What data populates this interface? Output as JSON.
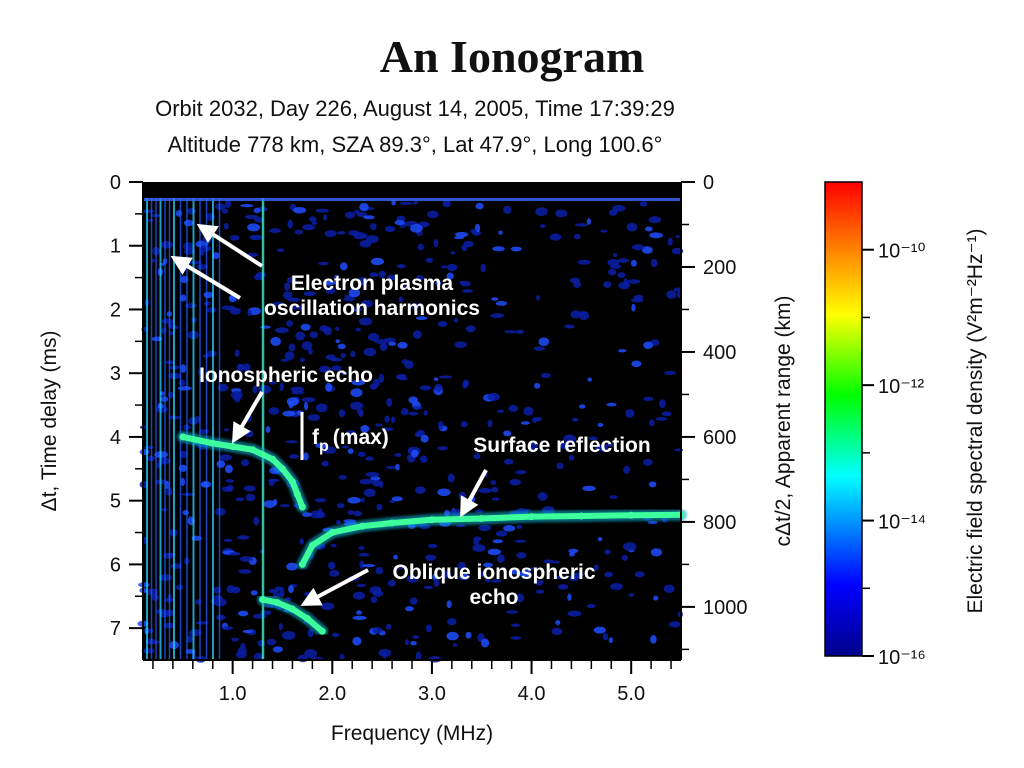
{
  "title": "An Ionogram",
  "header_line1": "Orbit 2032,   Day 226,  August 14, 2005,   Time  17:39:29",
  "header_line2": "Altitude  778 km,  SZA  89.3°,  Lat  47.9°,  Long  100.6°",
  "chart_data": {
    "type": "heatmap",
    "xlabel": "Frequency (MHz)",
    "ylabel_left": "Δt, Time delay (ms)",
    "ylabel_right": "cΔt/2, Apparent range (km)",
    "colorbar_label": "Electric field spectral density (V²m⁻²Hz⁻¹)",
    "xlim": [
      0.1,
      5.5
    ],
    "ylim_left": [
      0,
      7.5
    ],
    "ylim_right": [
      0,
      1125
    ],
    "x_ticks": [
      "1.0",
      "2.0",
      "3.0",
      "4.0",
      "5.0"
    ],
    "y_ticks_left": [
      "0",
      "1",
      "2",
      "3",
      "4",
      "5",
      "6",
      "7"
    ],
    "y_ticks_right": [
      "0",
      "200",
      "400",
      "600",
      "800",
      "1000"
    ],
    "colorbar": {
      "scale": "log",
      "ticks": [
        "10⁻¹⁰",
        "10⁻¹²",
        "10⁻¹⁴",
        "10⁻¹⁶"
      ],
      "range": [
        1e-16,
        1e-09
      ],
      "colors": [
        "#00008b",
        "#0000ff",
        "#00ffff",
        "#00ff00",
        "#ffff00",
        "#ff8000",
        "#ff0000"
      ]
    },
    "traces": [
      {
        "name": "Ionospheric echo",
        "x": [
          0.5,
          0.8,
          1.0,
          1.2,
          1.4,
          1.5,
          1.6,
          1.65,
          1.7
        ],
        "y": [
          4.0,
          4.1,
          4.15,
          4.2,
          4.35,
          4.5,
          4.7,
          4.9,
          5.1
        ]
      },
      {
        "name": "Surface reflection",
        "x": [
          1.7,
          1.8,
          2.0,
          2.3,
          2.6,
          3.0,
          3.5,
          4.0,
          4.5,
          5.0,
          5.5
        ],
        "y": [
          6.0,
          5.7,
          5.5,
          5.4,
          5.35,
          5.3,
          5.28,
          5.25,
          5.24,
          5.23,
          5.22
        ]
      },
      {
        "name": "Oblique ionospheric echo",
        "x": [
          1.3,
          1.45,
          1.6,
          1.75,
          1.9
        ],
        "y": [
          6.55,
          6.6,
          6.7,
          6.85,
          7.05
        ]
      }
    ],
    "annotations": {
      "harmonics": [
        "Electron plasma",
        "oscillation harmonics"
      ],
      "ionospheric": "Ionospheric echo",
      "fp_main": "f",
      "fp_sub": "p",
      "fp_rest": "(max)",
      "surface": "Surface reflection",
      "oblique": [
        "Oblique ionospheric",
        "echo"
      ]
    }
  }
}
